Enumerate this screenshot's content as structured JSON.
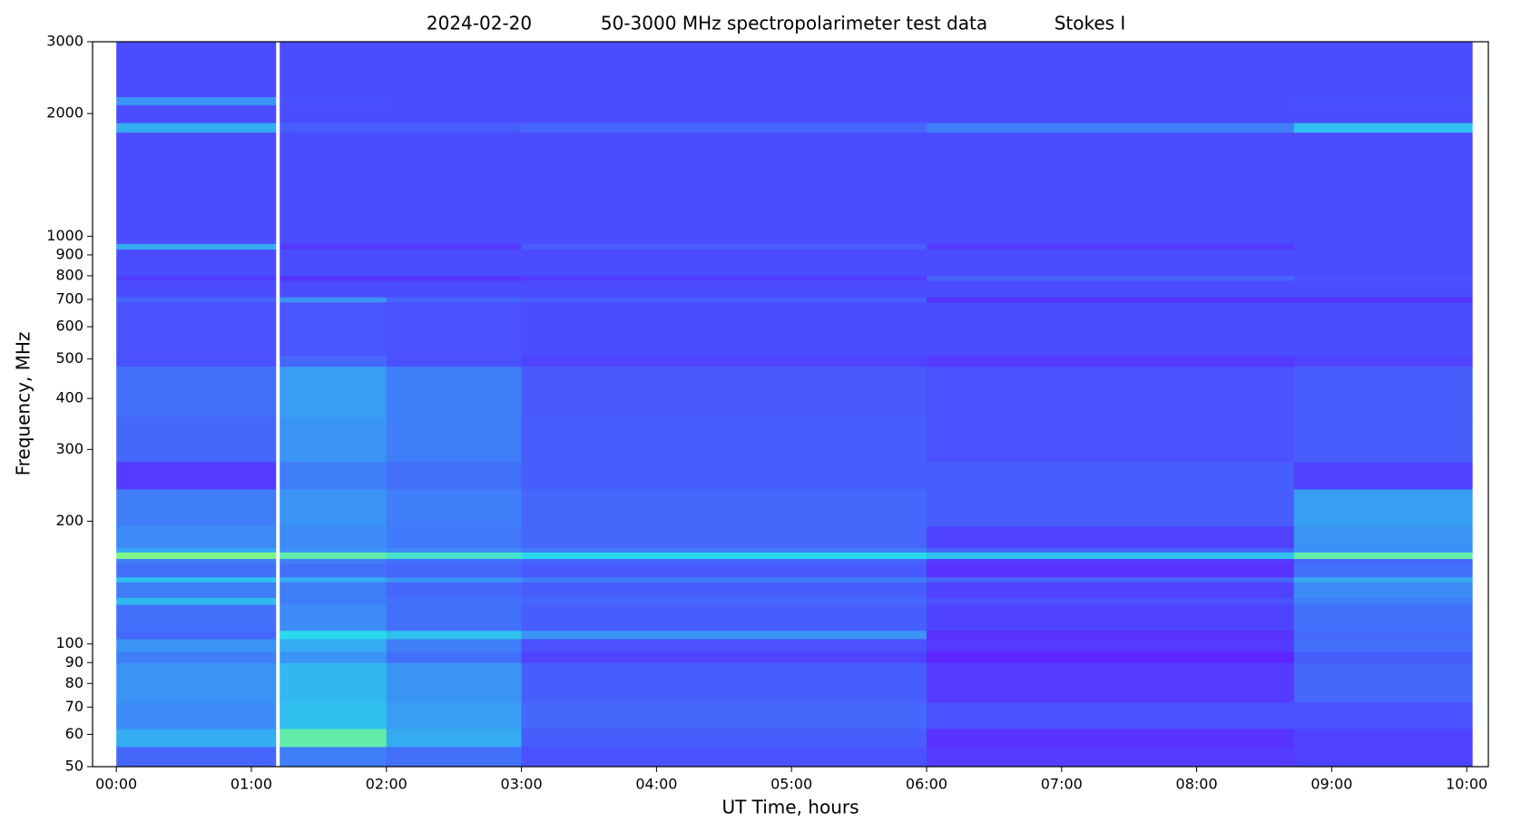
{
  "chart_data": {
    "type": "heatmap",
    "title_parts": [
      "2024-02-20",
      "50-3000 MHz spectropolarimeter test data",
      "Stokes I"
    ],
    "xlabel": "UT Time, hours",
    "ylabel": "Frequency, MHz",
    "xlim": [
      -0.176,
      10.16
    ],
    "ylim": [
      50,
      3000
    ],
    "ylog": true,
    "xticks": [
      {
        "value": 0,
        "label": "00:00"
      },
      {
        "value": 1,
        "label": "01:00"
      },
      {
        "value": 2,
        "label": "02:00"
      },
      {
        "value": 3,
        "label": "03:00"
      },
      {
        "value": 4,
        "label": "04:00"
      },
      {
        "value": 5,
        "label": "05:00"
      },
      {
        "value": 6,
        "label": "06:00"
      },
      {
        "value": 7,
        "label": "07:00"
      },
      {
        "value": 8,
        "label": "08:00"
      },
      {
        "value": 9,
        "label": "09:00"
      },
      {
        "value": 10,
        "label": "10:00"
      }
    ],
    "yticks": [
      50,
      60,
      70,
      80,
      90,
      100,
      200,
      300,
      400,
      500,
      600,
      700,
      800,
      900,
      1000,
      2000,
      3000
    ],
    "colorscale": [
      [
        0,
        "#6a10ff"
      ],
      [
        0.14,
        "#4b4cff"
      ],
      [
        0.45,
        "#2ad8ec"
      ],
      [
        0.65,
        "#9bff66"
      ],
      [
        0.8,
        "#ffd000"
      ],
      [
        1,
        "#ff1a1a"
      ]
    ],
    "x_edges": [
      0,
      1.18,
      1.21,
      2.0,
      3.0,
      6.0,
      8.72,
      10.04
    ],
    "y_edges": [
      50,
      56,
      62,
      72,
      90,
      96,
      103,
      108,
      125,
      130,
      142,
      146,
      158,
      162,
      168,
      172,
      195,
      240,
      280,
      360,
      480,
      510,
      690,
      710,
      780,
      800,
      930,
      960,
      1800,
      1900,
      2100,
      2200,
      3000
    ],
    "z": [
      [
        0.2,
        null,
        0.25,
        0.22,
        0.15,
        0.1,
        0.12
      ],
      [
        0.35,
        null,
        0.55,
        0.35,
        0.18,
        0.08,
        0.12
      ],
      [
        0.28,
        null,
        0.4,
        0.32,
        0.2,
        0.15,
        0.15
      ],
      [
        0.3,
        null,
        0.38,
        0.3,
        0.18,
        0.1,
        0.2
      ],
      [
        0.25,
        null,
        0.3,
        0.22,
        0.12,
        0.05,
        0.18
      ],
      [
        0.3,
        null,
        0.35,
        0.25,
        0.15,
        0.1,
        0.22
      ],
      [
        0.2,
        null,
        0.45,
        0.4,
        0.3,
        0.08,
        0.2
      ],
      [
        0.22,
        null,
        0.28,
        0.22,
        0.18,
        0.12,
        0.22
      ],
      [
        0.38,
        null,
        0.25,
        0.22,
        0.2,
        0.15,
        0.25
      ],
      [
        0.25,
        null,
        0.25,
        0.2,
        0.18,
        0.12,
        0.28
      ],
      [
        0.4,
        null,
        0.35,
        0.3,
        0.25,
        0.2,
        0.35
      ],
      [
        0.22,
        null,
        0.22,
        0.2,
        0.17,
        0.08,
        0.22
      ],
      [
        0.25,
        null,
        0.25,
        0.22,
        0.2,
        0.1,
        0.2
      ],
      [
        0.6,
        null,
        0.55,
        0.5,
        0.45,
        0.4,
        0.55
      ],
      [
        0.35,
        null,
        0.3,
        0.28,
        0.25,
        0.2,
        0.3
      ],
      [
        0.28,
        null,
        0.28,
        0.24,
        0.2,
        0.12,
        0.3
      ],
      [
        0.25,
        null,
        0.3,
        0.25,
        0.2,
        0.18,
        0.32
      ],
      [
        0.1,
        null,
        0.25,
        0.22,
        0.18,
        0.18,
        0.12
      ],
      [
        0.2,
        null,
        0.3,
        0.25,
        0.18,
        0.15,
        0.18
      ],
      [
        0.22,
        null,
        0.32,
        0.25,
        0.17,
        0.15,
        0.18
      ],
      [
        0.15,
        null,
        0.2,
        0.15,
        0.12,
        0.1,
        0.12
      ],
      [
        0.15,
        null,
        0.16,
        0.15,
        0.14,
        0.14,
        0.14
      ],
      [
        0.2,
        null,
        0.3,
        0.2,
        0.18,
        0.08,
        0.08
      ],
      [
        0.14,
        null,
        0.14,
        0.14,
        0.14,
        0.14,
        0.14
      ],
      [
        0.1,
        null,
        0.08,
        0.08,
        0.1,
        0.2,
        0.15
      ],
      [
        0.14,
        null,
        0.14,
        0.14,
        0.14,
        0.14,
        0.14
      ],
      [
        0.35,
        null,
        0.1,
        0.1,
        0.18,
        0.1,
        0.14
      ],
      [
        0.14,
        null,
        0.14,
        0.14,
        0.14,
        0.14,
        0.14
      ],
      [
        0.35,
        null,
        0.18,
        0.18,
        0.2,
        0.25,
        0.4
      ],
      [
        0.14,
        null,
        0.14,
        0.14,
        0.14,
        0.14,
        0.14
      ],
      [
        0.3,
        null,
        0.15,
        0.14,
        0.14,
        0.14,
        0.15
      ],
      [
        0.14,
        null,
        0.14,
        0.14,
        0.14,
        0.14,
        0.14
      ]
    ]
  }
}
